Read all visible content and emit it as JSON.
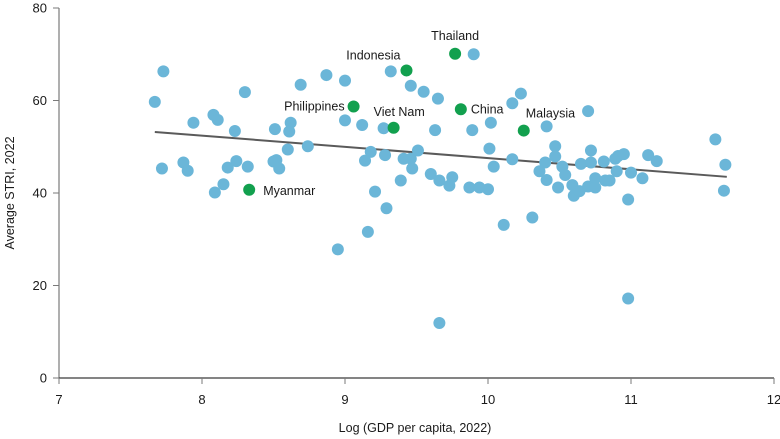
{
  "chart_data": {
    "type": "scatter",
    "title": "",
    "xlabel": "Log (GDP per capita, 2022)",
    "ylabel": "Average STRI, 2022",
    "xlim": [
      7,
      12
    ],
    "ylim": [
      0,
      80
    ],
    "xticks": [
      "7",
      "8",
      "9",
      "10",
      "11",
      "12"
    ],
    "yticks": [
      "0",
      "20",
      "40",
      "60",
      "80"
    ],
    "grid": false,
    "colors": {
      "other": "#6bb6d8",
      "highlight": "#12a04e",
      "trend": "#5a5a5a"
    },
    "trendline": {
      "x": [
        7.67,
        11.67
      ],
      "y": [
        53.2,
        43.5
      ]
    },
    "highlighted": [
      {
        "name": "Thailand",
        "x": 9.77,
        "y": 70.1
      },
      {
        "name": "Indonesia",
        "x": 9.43,
        "y": 66.5
      },
      {
        "name": "Philippines",
        "x": 9.06,
        "y": 58.7
      },
      {
        "name": "Viet Nam",
        "x": 9.34,
        "y": 54.1
      },
      {
        "name": "China",
        "x": 9.81,
        "y": 58.1
      },
      {
        "name": "Malaysia",
        "x": 10.25,
        "y": 53.5
      },
      {
        "name": "Myanmar",
        "x": 8.33,
        "y": 40.7
      }
    ],
    "others": [
      [
        7.73,
        66.3
      ],
      [
        7.67,
        59.7
      ],
      [
        7.94,
        55.2
      ],
      [
        8.08,
        56.9
      ],
      [
        8.11,
        55.8
      ],
      [
        8.23,
        53.4
      ],
      [
        8.3,
        61.8
      ],
      [
        8.51,
        53.8
      ],
      [
        8.62,
        55.2
      ],
      [
        8.61,
        53.3
      ],
      [
        8.69,
        63.4
      ],
      [
        8.87,
        65.5
      ],
      [
        8.6,
        49.4
      ],
      [
        8.74,
        50.1
      ],
      [
        7.72,
        45.3
      ],
      [
        7.87,
        46.6
      ],
      [
        7.9,
        44.8
      ],
      [
        8.18,
        45.5
      ],
      [
        8.24,
        46.9
      ],
      [
        8.32,
        45.7
      ],
      [
        8.5,
        46.8
      ],
      [
        8.52,
        47.1
      ],
      [
        8.54,
        45.3
      ],
      [
        8.15,
        41.9
      ],
      [
        8.09,
        40.1
      ],
      [
        9.9,
        70.0
      ],
      [
        9.32,
        66.3
      ],
      [
        9.46,
        63.2
      ],
      [
        9.55,
        61.9
      ],
      [
        9.65,
        60.4
      ],
      [
        9.0,
        64.3
      ],
      [
        9.0,
        55.7
      ],
      [
        9.12,
        54.7
      ],
      [
        9.27,
        54.0
      ],
      [
        9.63,
        53.6
      ],
      [
        9.89,
        53.6
      ],
      [
        10.02,
        55.2
      ],
      [
        10.17,
        59.4
      ],
      [
        10.23,
        61.5
      ],
      [
        9.18,
        48.9
      ],
      [
        9.28,
        48.2
      ],
      [
        9.14,
        47.0
      ],
      [
        9.41,
        47.4
      ],
      [
        9.46,
        47.4
      ],
      [
        9.51,
        49.2
      ],
      [
        9.47,
        45.3
      ],
      [
        9.6,
        44.1
      ],
      [
        9.66,
        42.7
      ],
      [
        9.75,
        43.4
      ],
      [
        9.73,
        41.6
      ],
      [
        9.39,
        42.7
      ],
      [
        9.21,
        40.3
      ],
      [
        9.29,
        36.7
      ],
      [
        9.16,
        31.6
      ],
      [
        8.95,
        27.8
      ],
      [
        10.01,
        49.6
      ],
      [
        10.04,
        45.7
      ],
      [
        10.17,
        47.3
      ],
      [
        9.87,
        41.2
      ],
      [
        9.94,
        41.2
      ],
      [
        10.0,
        40.8
      ],
      [
        10.11,
        33.1
      ],
      [
        10.31,
        34.7
      ],
      [
        10.47,
        50.1
      ],
      [
        10.47,
        47.9
      ],
      [
        10.4,
        46.6
      ],
      [
        10.36,
        44.7
      ],
      [
        10.41,
        42.8
      ],
      [
        10.49,
        41.2
      ],
      [
        10.52,
        45.7
      ],
      [
        10.54,
        43.9
      ],
      [
        10.59,
        41.7
      ],
      [
        10.6,
        39.4
      ],
      [
        10.64,
        40.4
      ],
      [
        10.65,
        46.3
      ],
      [
        10.72,
        46.6
      ],
      [
        10.72,
        49.2
      ],
      [
        10.7,
        41.4
      ],
      [
        10.75,
        43.2
      ],
      [
        10.75,
        41.2
      ],
      [
        10.81,
        46.8
      ],
      [
        10.82,
        42.7
      ],
      [
        10.85,
        42.7
      ],
      [
        10.89,
        47.4
      ],
      [
        10.91,
        48.0
      ],
      [
        10.95,
        48.4
      ],
      [
        10.9,
        44.7
      ],
      [
        10.98,
        38.6
      ],
      [
        10.7,
        57.7
      ],
      [
        10.41,
        54.4
      ],
      [
        11.59,
        51.6
      ],
      [
        11.66,
        46.1
      ],
      [
        11.65,
        40.5
      ],
      [
        11.12,
        48.2
      ],
      [
        11.18,
        46.9
      ],
      [
        11.08,
        43.2
      ],
      [
        11.0,
        44.4
      ],
      [
        10.98,
        17.2
      ],
      [
        9.66,
        11.9
      ]
    ]
  }
}
